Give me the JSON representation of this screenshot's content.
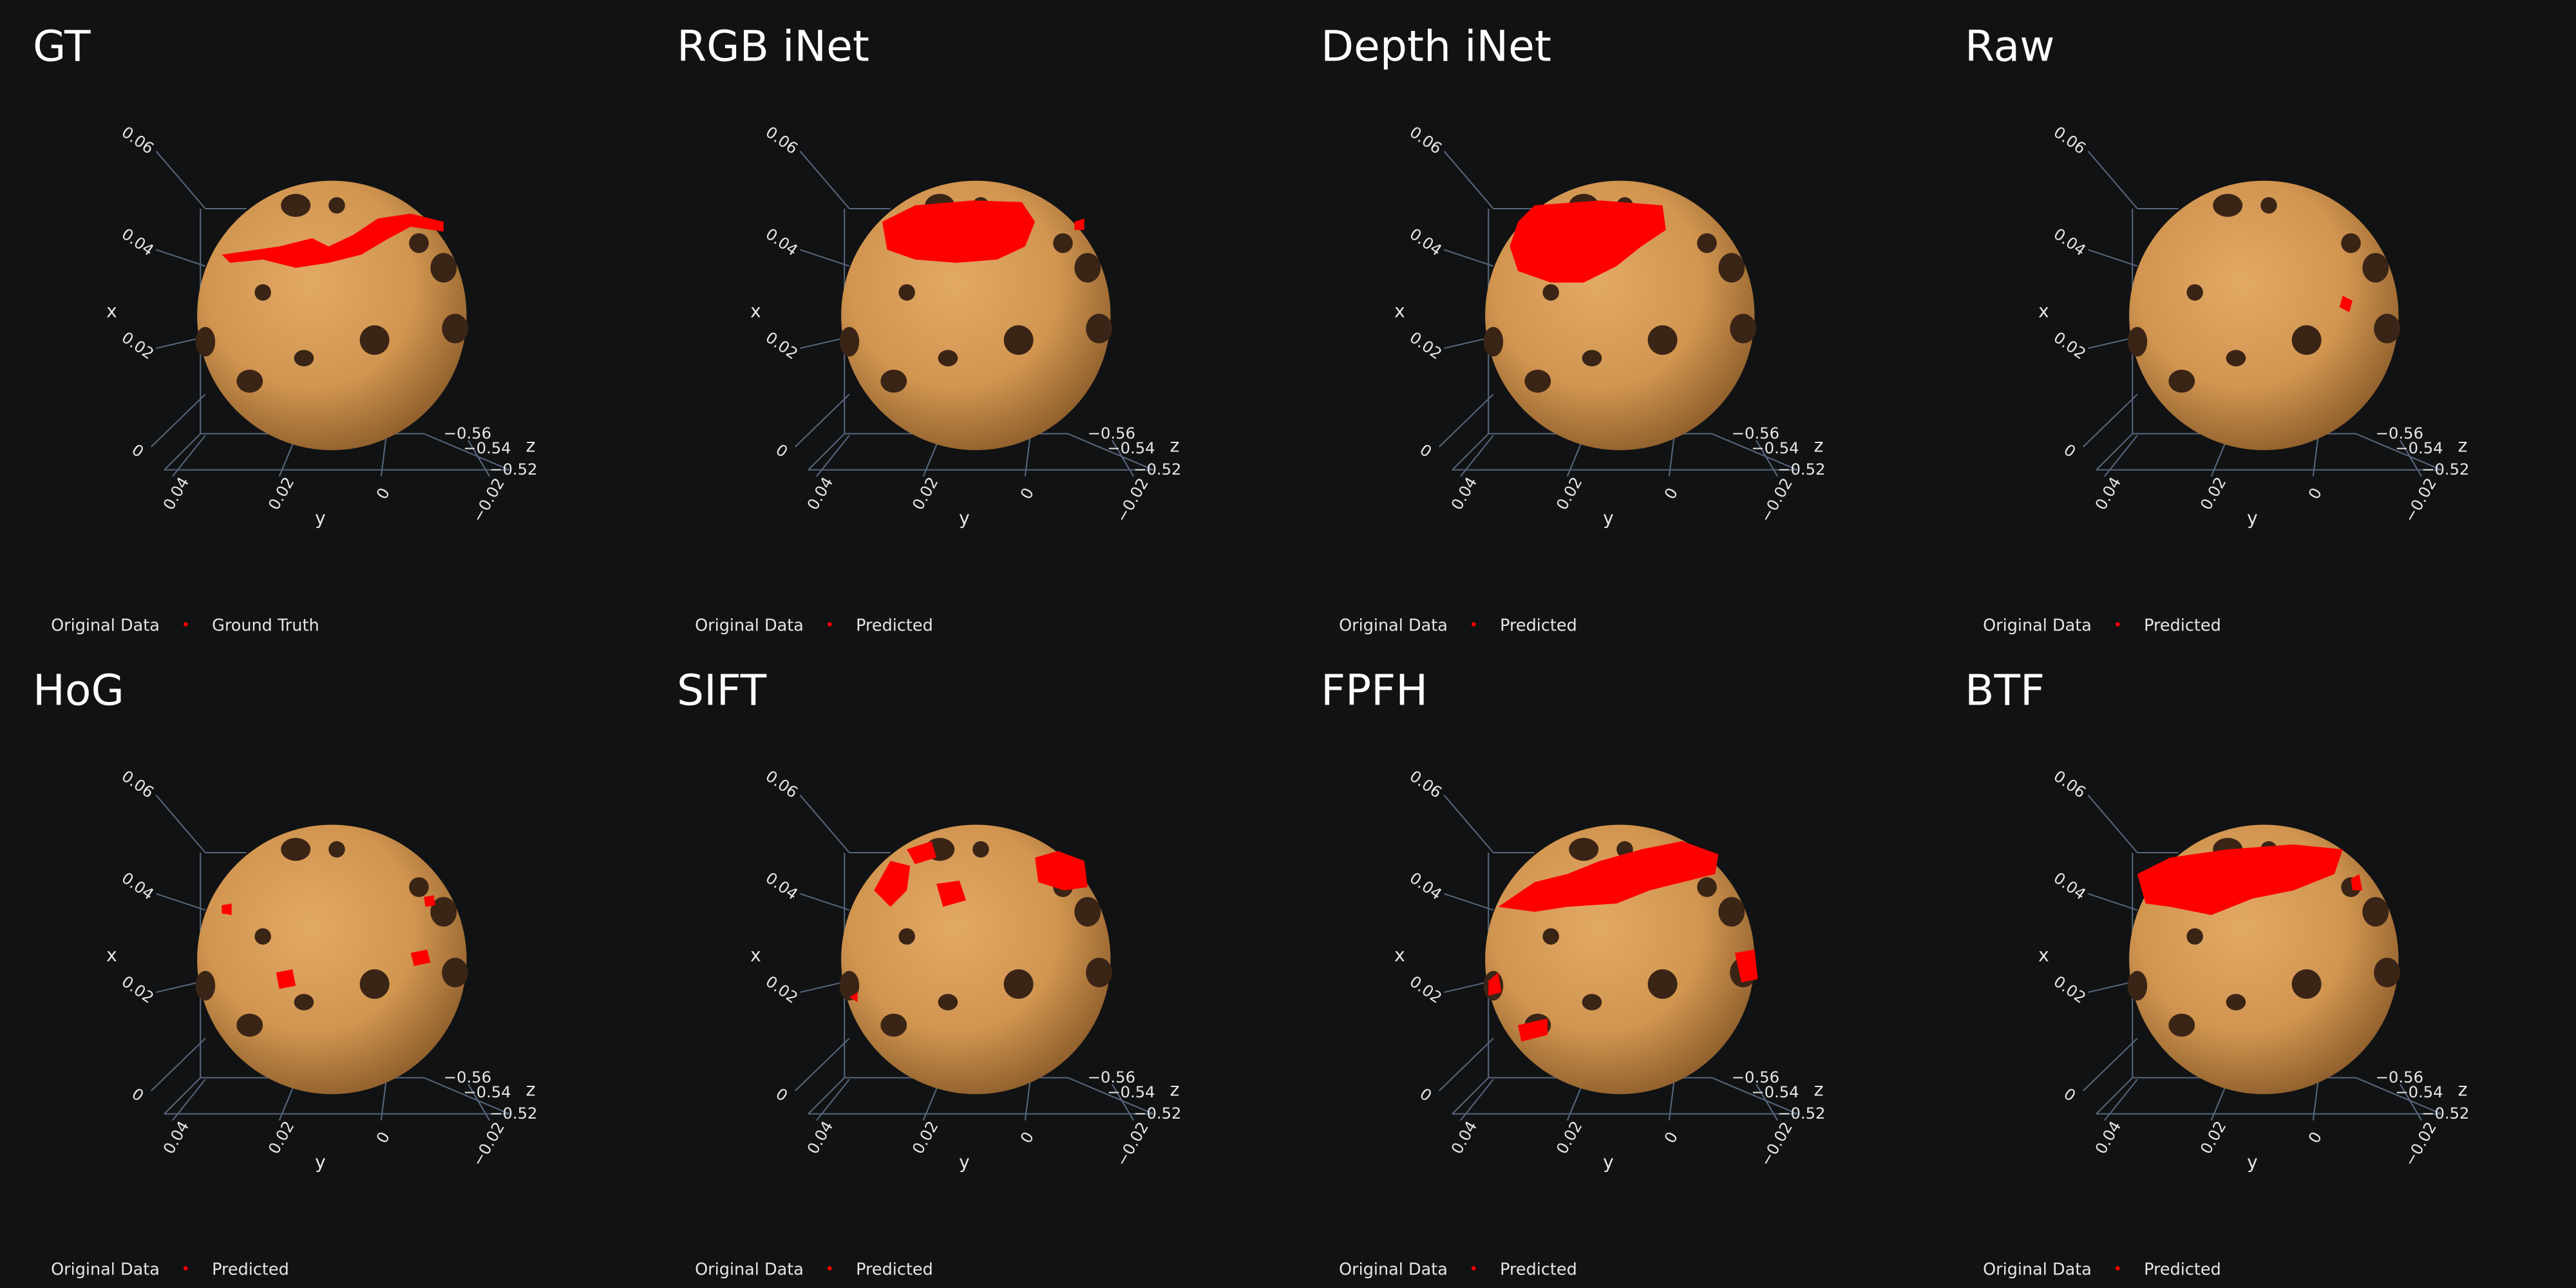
{
  "panels": [
    {
      "title": "GT",
      "legend": [
        "Original Data",
        "Ground Truth"
      ]
    },
    {
      "title": "RGB iNet",
      "legend": [
        "Original Data",
        "Predicted"
      ]
    },
    {
      "title": "Depth iNet",
      "legend": [
        "Original Data",
        "Predicted"
      ]
    },
    {
      "title": "Raw",
      "legend": [
        "Original Data",
        "Predicted"
      ]
    },
    {
      "title": "HoG",
      "legend": [
        "Original Data",
        "Predicted"
      ]
    },
    {
      "title": "SIFT",
      "legend": [
        "Original Data",
        "Predicted"
      ]
    },
    {
      "title": "FPFH",
      "legend": [
        "Original Data",
        "Predicted"
      ]
    },
    {
      "title": "BTF",
      "legend": [
        "Original Data",
        "Predicted"
      ]
    }
  ],
  "axes": {
    "x_label": "x",
    "y_label": "y",
    "z_label": "z",
    "x_ticks": [
      "0.06",
      "0.04",
      "0.02",
      "0"
    ],
    "y_ticks": [
      "0.04",
      "0.02",
      "0",
      "−0.02"
    ],
    "z_ticks": [
      "−0.56",
      "−0.54",
      "−0.52"
    ]
  }
}
